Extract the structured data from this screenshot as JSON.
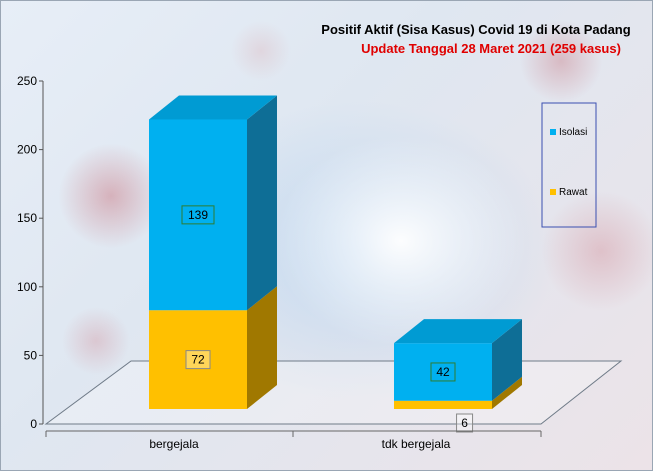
{
  "chart_data": {
    "type": "bar",
    "stacked": true,
    "three_d": true,
    "title": "Positif Aktif  (Sisa Kasus) Covid 19 di Kota Padang",
    "subtitle": "Update Tanggal  28 Maret 2021  (259 kasus)",
    "categories": [
      "bergejala",
      "tdk bergejala"
    ],
    "series": [
      {
        "name": "Rawat",
        "values": [
          72,
          6
        ],
        "color": "#FFC000",
        "side_color": "#A07800"
      },
      {
        "name": "Isolasi",
        "values": [
          139,
          42
        ],
        "color": "#00B0F0",
        "side_color": "#0E6E96"
      }
    ],
    "ylim": [
      0,
      250
    ],
    "yticks": [
      0,
      50,
      100,
      150,
      200,
      250
    ],
    "grid": false,
    "legend_position": "right",
    "legend_order": [
      "Isolasi",
      "Rawat"
    ],
    "title_color": "#000000",
    "subtitle_color": "#E00000",
    "legend_border_color": "#3A4FB0"
  }
}
